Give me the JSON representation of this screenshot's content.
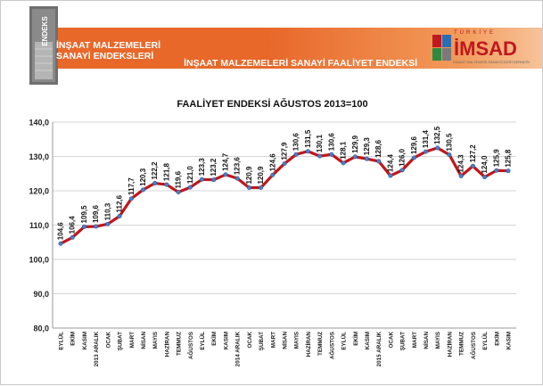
{
  "header": {
    "logo_text": "ENDEKS",
    "brand_title_line1": "İNŞAAT MALZEMELERİ",
    "brand_title_line2": "SANAYİ ENDEKSLERİ",
    "band_title": "İNŞAAT MALZEMELERİ SANAYİ FAALİYET ENDEKSİ",
    "imsad_top": "TÜRKİYE",
    "imsad_name": "İMSAD",
    "imsad_desc": "İNŞAAT MALZEMESİ SANAYİCİLERİ DERNEĞİ",
    "accent_color": "#e8682a",
    "brand_red": "#c0181f"
  },
  "chart_data": {
    "type": "line",
    "title": "FAALİYET ENDEKSİ AĞUSTOS 2013=100",
    "xlabel": "",
    "ylabel": "",
    "ylim": [
      80,
      140
    ],
    "yticks": [
      "80,0",
      "90,0",
      "100,0",
      "110,0",
      "120,0",
      "130,0",
      "140,0"
    ],
    "grid": true,
    "line_color": "#c0161c",
    "marker_color": "#4d7fc4",
    "categories": [
      "EYLÜL",
      "EKİM",
      "KASIM",
      "2013 ARALIK",
      "OCAK",
      "ŞUBAT",
      "MART",
      "NİSAN",
      "MAYIS",
      "HAZİRAN",
      "TEMMUZ",
      "AĞUSTOS",
      "EYLÜL",
      "EKİM",
      "KASIM",
      "2014 ARALIK",
      "OCAK",
      "ŞUBAT",
      "MART",
      "NİSAN",
      "MAYIS",
      "HAZİRAN",
      "TEMMUZ",
      "AĞUSTOS",
      "EYLÜL",
      "EKİM",
      "KASIM",
      "2015 ARALIK",
      "OCAK",
      "ŞUBAT",
      "MART",
      "NİSAN",
      "MAYIS",
      "HAZİRAN",
      "TEMMUZ",
      "AĞUSTOS",
      "EYLÜL",
      "EKİM",
      "KASIM"
    ],
    "values": [
      104.6,
      106.4,
      109.5,
      109.6,
      110.3,
      112.6,
      117.7,
      120.3,
      122.2,
      121.8,
      119.6,
      121.0,
      123.3,
      123.2,
      124.7,
      123.6,
      120.9,
      120.9,
      124.6,
      127.9,
      130.6,
      131.5,
      130.1,
      130.6,
      128.1,
      129.9,
      129.3,
      128.6,
      124.4,
      126.0,
      129.6,
      131.4,
      132.5,
      130.5,
      124.3,
      127.2,
      124.0,
      125.9,
      125.8
    ],
    "labels": [
      "104,6",
      "106,4",
      "109,5",
      "109,6",
      "110,3",
      "112,6",
      "117,7",
      "120,3",
      "122,2",
      "121,8",
      "119,6",
      "121,0",
      "123,3",
      "123,2",
      "124,7",
      "123,6",
      "120,9",
      "120,9",
      "124,6",
      "127,9",
      "130,6",
      "131,5",
      "130,1",
      "130,6",
      "128,1",
      "129,9",
      "129,3",
      "128,6",
      "124,4",
      "126,0",
      "129,6",
      "131,4",
      "132,5",
      "130,5",
      "124,3",
      "127,2",
      "124,0",
      "125,9",
      "125,8"
    ]
  }
}
